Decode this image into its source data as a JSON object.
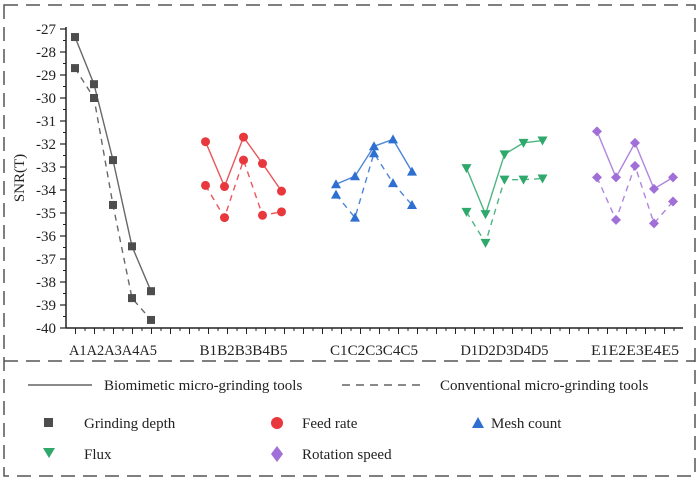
{
  "chart_data": {
    "type": "line",
    "title": "",
    "xlabel": "",
    "ylabel": "SNR(T)",
    "ylim": [
      -40,
      -27
    ],
    "yticks": [
      "-27",
      "-28",
      "-29",
      "-30",
      "-31",
      "-32",
      "-33",
      "-34",
      "-35",
      "-36",
      "-37",
      "-38",
      "-39",
      "-40"
    ],
    "grid": false,
    "group_labels": [
      "A1A2A3A4A5",
      "B1B2B3B4B5",
      "C1C2C3C4C5",
      "D1D2D3D4D5",
      "E1E2E3E4E5"
    ],
    "line_styles": {
      "solid": "Biomimetic micro-grinding tools",
      "dashed": "Conventional micro-grinding tools"
    },
    "factors": [
      {
        "name": "Grinding depth",
        "marker": "square",
        "color": "#4d4d4d",
        "categories": [
          "A1",
          "A2",
          "A3",
          "A4",
          "A5"
        ],
        "biomimetic": [
          -27.35,
          -29.4,
          -32.7,
          -36.45,
          -38.4
        ],
        "conventional": [
          -28.7,
          -30.0,
          -34.65,
          -38.7,
          -39.65
        ]
      },
      {
        "name": "Feed rate",
        "marker": "circle",
        "color": "#e8383d",
        "categories": [
          "B1",
          "B2",
          "B3",
          "B4",
          "B5"
        ],
        "biomimetic": [
          -31.9,
          -33.85,
          -31.7,
          -32.85,
          -34.05
        ],
        "conventional": [
          -33.8,
          -35.2,
          -32.7,
          -35.1,
          -34.95
        ]
      },
      {
        "name": "Mesh count",
        "marker": "triangle-up",
        "color": "#2e6fd1",
        "categories": [
          "C1",
          "C2",
          "C3",
          "C4",
          "C5"
        ],
        "biomimetic": [
          -33.75,
          -33.4,
          -32.1,
          -31.8,
          -33.2
        ],
        "conventional": [
          -34.2,
          -35.2,
          -32.4,
          -33.7,
          -34.65
        ]
      },
      {
        "name": "Flux",
        "marker": "triangle-down",
        "color": "#2ea86b",
        "categories": [
          "D1",
          "D2",
          "D3",
          "D4",
          "D5"
        ],
        "biomimetic": [
          -33.05,
          -35.05,
          -32.45,
          -31.95,
          -31.85
        ],
        "conventional": [
          -34.95,
          -36.3,
          -33.55,
          -33.55,
          -33.5
        ]
      },
      {
        "name": "Rotation speed",
        "marker": "diamond",
        "color": "#a070d8",
        "categories": [
          "E1",
          "E2",
          "E3",
          "E4",
          "E5"
        ],
        "biomimetic": [
          -31.45,
          -33.45,
          -31.95,
          -33.95,
          -33.45
        ],
        "conventional": [
          -33.45,
          -35.3,
          -32.95,
          -35.45,
          -34.5
        ]
      }
    ],
    "legend_position": "bottom"
  },
  "legend": {
    "solid_label": "Biomimetic micro-grinding tools",
    "dashed_label": "Conventional micro-grinding tools",
    "items": [
      "Grinding depth",
      "Feed rate",
      "Mesh count",
      "Flux",
      "Rotation speed"
    ]
  }
}
